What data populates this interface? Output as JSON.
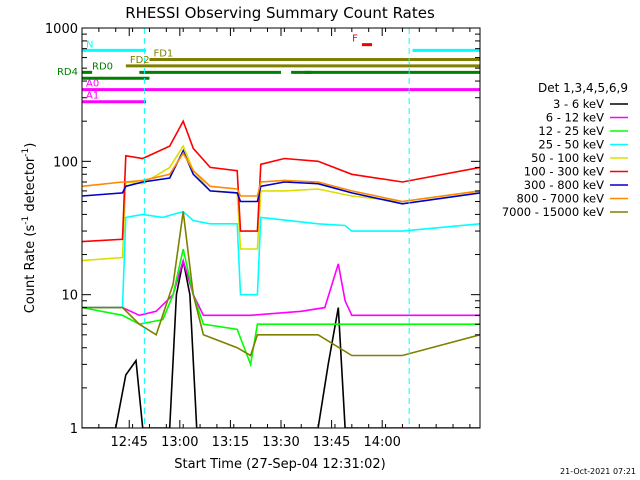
{
  "chart_data": {
    "type": "line",
    "title": "RHESSI Observing Summary Count Rates",
    "xlabel": "Start Time (27-Sep-04 12:31:02)",
    "ylabel": "Count Rate (s⁻¹ detector⁻¹)",
    "ylabel_main": "Count Rate (s",
    "ylabel_sup1": "-1",
    "ylabel_mid": " detector",
    "ylabel_sup2": "-1",
    "ylabel_end": ")",
    "yscale": "log",
    "xlim_min": [
      0,
      118
    ],
    "ylim": [
      1,
      1000
    ],
    "x_ticks": [
      {
        "min": 14,
        "label": "12:45"
      },
      {
        "min": 29,
        "label": "13:00"
      },
      {
        "min": 44,
        "label": "13:15"
      },
      {
        "min": 59,
        "label": "13:30"
      },
      {
        "min": 74,
        "label": "13:45"
      },
      {
        "min": 89,
        "label": "14:00"
      }
    ],
    "y_ticks": [
      {
        "value": 1,
        "label": "1"
      },
      {
        "value": 10,
        "label": "10"
      },
      {
        "value": 100,
        "label": "100"
      },
      {
        "value": 1000,
        "label": "1000"
      }
    ],
    "legend_title": "Det 1,3,4,5,6,9",
    "legend_position": "right",
    "series": [
      {
        "name": "3 - 6 keV",
        "color": "#000000",
        "points": [
          [
            0,
            1
          ],
          [
            10,
            1
          ],
          [
            13,
            2.5
          ],
          [
            16,
            3.2
          ],
          [
            18,
            1
          ],
          [
            26,
            1
          ],
          [
            28,
            10
          ],
          [
            30,
            18
          ],
          [
            32,
            10
          ],
          [
            34,
            1
          ],
          [
            70,
            1
          ],
          [
            73,
            3
          ],
          [
            76,
            8
          ],
          [
            78,
            1
          ],
          [
            118,
            1
          ]
        ]
      },
      {
        "name": "6 - 12 keV",
        "color": "#ff00ff",
        "points": [
          [
            0,
            8
          ],
          [
            12,
            8
          ],
          [
            17,
            7
          ],
          [
            22,
            7.5
          ],
          [
            27,
            10
          ],
          [
            30,
            18
          ],
          [
            33,
            10
          ],
          [
            36,
            7
          ],
          [
            50,
            7
          ],
          [
            65,
            7.5
          ],
          [
            72,
            8
          ],
          [
            76,
            17
          ],
          [
            78,
            9
          ],
          [
            80,
            7
          ],
          [
            118,
            7
          ]
        ]
      },
      {
        "name": "12 - 25 keV",
        "color": "#00ff00",
        "points": [
          [
            0,
            8
          ],
          [
            12,
            7
          ],
          [
            17,
            6
          ],
          [
            24,
            6.5
          ],
          [
            27,
            10
          ],
          [
            30,
            22
          ],
          [
            33,
            10
          ],
          [
            36,
            6
          ],
          [
            46,
            5.5
          ],
          [
            50,
            3
          ],
          [
            52,
            6
          ],
          [
            70,
            6
          ],
          [
            85,
            6
          ],
          [
            118,
            6
          ]
        ]
      },
      {
        "name": "25 - 50 keV",
        "color": "#00ffff",
        "points": [
          [
            0,
            8
          ],
          [
            12,
            8
          ],
          [
            13,
            38
          ],
          [
            18,
            40
          ],
          [
            24,
            38
          ],
          [
            27,
            40
          ],
          [
            30,
            42
          ],
          [
            33,
            36
          ],
          [
            38,
            34
          ],
          [
            46,
            34
          ],
          [
            47,
            10
          ],
          [
            52,
            10
          ],
          [
            53,
            38
          ],
          [
            70,
            34
          ],
          [
            78,
            33
          ],
          [
            80,
            30
          ],
          [
            95,
            30
          ],
          [
            118,
            34
          ]
        ]
      },
      {
        "name": "50 - 100 keV",
        "color": "#dddd00",
        "points": [
          [
            0,
            18
          ],
          [
            12,
            19
          ],
          [
            13,
            70
          ],
          [
            18,
            68
          ],
          [
            26,
            90
          ],
          [
            30,
            130
          ],
          [
            33,
            85
          ],
          [
            38,
            60
          ],
          [
            46,
            58
          ],
          [
            47,
            22
          ],
          [
            52,
            22
          ],
          [
            53,
            60
          ],
          [
            60,
            60
          ],
          [
            70,
            62
          ],
          [
            80,
            55
          ],
          [
            95,
            50
          ],
          [
            118,
            60
          ]
        ]
      },
      {
        "name": "100 - 300 keV",
        "color": "#ff0000",
        "points": [
          [
            0,
            25
          ],
          [
            12,
            26
          ],
          [
            13,
            110
          ],
          [
            18,
            105
          ],
          [
            26,
            130
          ],
          [
            30,
            200
          ],
          [
            33,
            125
          ],
          [
            38,
            90
          ],
          [
            46,
            85
          ],
          [
            47,
            30
          ],
          [
            52,
            30
          ],
          [
            53,
            95
          ],
          [
            60,
            105
          ],
          [
            70,
            100
          ],
          [
            80,
            80
          ],
          [
            95,
            70
          ],
          [
            118,
            90
          ]
        ]
      },
      {
        "name": "300 - 800 keV",
        "color": "#0000cc",
        "points": [
          [
            0,
            55
          ],
          [
            12,
            58
          ],
          [
            13,
            65
          ],
          [
            18,
            70
          ],
          [
            26,
            75
          ],
          [
            30,
            120
          ],
          [
            33,
            80
          ],
          [
            38,
            60
          ],
          [
            46,
            58
          ],
          [
            47,
            50
          ],
          [
            52,
            50
          ],
          [
            53,
            65
          ],
          [
            60,
            70
          ],
          [
            70,
            68
          ],
          [
            80,
            58
          ],
          [
            95,
            48
          ],
          [
            118,
            58
          ]
        ]
      },
      {
        "name": "800 - 7000 keV",
        "color": "#ff8800",
        "points": [
          [
            0,
            65
          ],
          [
            12,
            70
          ],
          [
            13,
            70
          ],
          [
            18,
            72
          ],
          [
            26,
            80
          ],
          [
            30,
            115
          ],
          [
            33,
            85
          ],
          [
            38,
            65
          ],
          [
            46,
            62
          ],
          [
            47,
            55
          ],
          [
            52,
            55
          ],
          [
            53,
            70
          ],
          [
            60,
            72
          ],
          [
            70,
            70
          ],
          [
            80,
            60
          ],
          [
            95,
            50
          ],
          [
            118,
            60
          ]
        ]
      },
      {
        "name": "7000 - 15000 keV",
        "color": "#808000",
        "points": [
          [
            0,
            8
          ],
          [
            12,
            8
          ],
          [
            17,
            6
          ],
          [
            22,
            5
          ],
          [
            27,
            12
          ],
          [
            30,
            42
          ],
          [
            33,
            10
          ],
          [
            36,
            5
          ],
          [
            46,
            4
          ],
          [
            50,
            3.5
          ],
          [
            52,
            5
          ],
          [
            70,
            5
          ],
          [
            80,
            3.5
          ],
          [
            95,
            3.5
          ],
          [
            118,
            5
          ]
        ]
      }
    ],
    "flags": [
      {
        "label": "N",
        "color": "#00ffff",
        "value": 680,
        "segments": [
          [
            0,
            19
          ],
          [
            98,
            118
          ]
        ]
      },
      {
        "label": "F",
        "color": "#ee0000",
        "value": 750,
        "segments": [
          [
            83,
            86
          ]
        ]
      },
      {
        "label": "FD1",
        "color": "#808000",
        "value": 580,
        "segments": [
          [
            20,
            118
          ]
        ]
      },
      {
        "label": "FD2",
        "color": "#808000",
        "value": 520,
        "segments": [
          [
            13,
            118
          ]
        ]
      },
      {
        "label": "RD0",
        "color": "#008000",
        "value": 465,
        "segments": [
          [
            0,
            3
          ],
          [
            17,
            59
          ],
          [
            62,
            68
          ],
          [
            66,
            118
          ]
        ]
      },
      {
        "label": "RD4",
        "color": "#008000",
        "value": 420,
        "segments": [
          [
            0,
            20
          ]
        ]
      },
      {
        "label": "A0",
        "color": "#ff00ff",
        "value": 345,
        "segments": [
          [
            0,
            118
          ]
        ]
      },
      {
        "label": "A1",
        "color": "#ff00ff",
        "value": 280,
        "segments": [
          [
            0,
            19
          ]
        ]
      }
    ],
    "vertical_markers": [
      {
        "x": 18.5,
        "color": "#00ffff"
      },
      {
        "x": 97,
        "color": "#00ffff"
      },
      {
        "x": 118,
        "color": "#00ffff"
      }
    ]
  },
  "timestamp": "21-Oct-2021 07:21"
}
